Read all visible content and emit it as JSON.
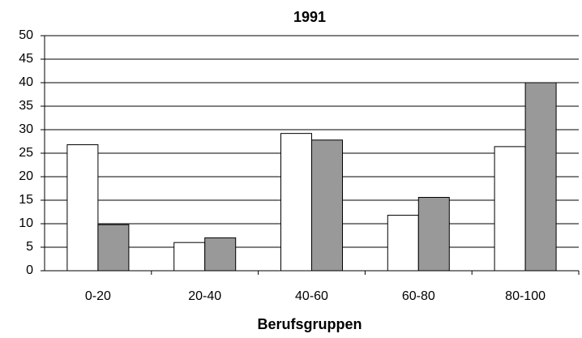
{
  "chart_data": {
    "type": "bar",
    "title": "1991",
    "x_label": "Berufsgruppen",
    "categories": [
      "0-20",
      "20-40",
      "40-60",
      "60-80",
      "80-100"
    ],
    "series": [
      {
        "color": "#ffffff",
        "values": [
          26.8,
          6,
          29.2,
          11.8,
          26.4
        ]
      },
      {
        "color": "#999999",
        "values": [
          9.8,
          7,
          27.8,
          15.6,
          40
        ]
      }
    ],
    "ylim": [
      0,
      50
    ],
    "yticks": [
      0,
      5,
      10,
      15,
      20,
      25,
      30,
      35,
      40,
      45,
      50
    ],
    "grid": true
  }
}
